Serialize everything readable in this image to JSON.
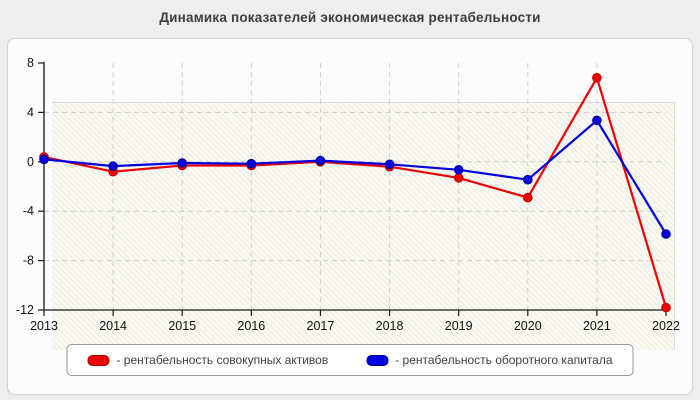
{
  "page": {
    "title": "Динамика показателей экономическая рентабельности"
  },
  "chart_data": {
    "type": "line",
    "title": "Динамика показателей экономическая рентабельности",
    "categories": [
      "2013",
      "2014",
      "2015",
      "2016",
      "2017",
      "2018",
      "2019",
      "2020",
      "2021",
      "2022"
    ],
    "series": [
      {
        "name": "рентабельность совокупных активов",
        "color": "#ee0000",
        "marker_edge": "#c00000",
        "values": [
          0.4,
          -0.8,
          -0.3,
          -0.3,
          0.0,
          -0.4,
          -1.3,
          -2.9,
          6.8,
          -11.8
        ]
      },
      {
        "name": "рентабельность оборотного капитала",
        "color": "#0000e0",
        "marker_edge": "#000090",
        "values": [
          0.2,
          -0.35,
          -0.1,
          -0.15,
          0.1,
          -0.2,
          -0.65,
          -1.45,
          3.35,
          -5.85
        ]
      }
    ],
    "xlabel": "",
    "ylabel": "",
    "ylim": [
      -12,
      8
    ],
    "yticks": [
      8,
      4,
      0,
      -4,
      -8,
      -12
    ],
    "grid": true,
    "grid_style": "dashed",
    "legend_position": "bottom"
  },
  "legend": {
    "items": [
      {
        "label": "- рентабельность совокупных активов",
        "color": "#ee0000",
        "edge": "#b00000"
      },
      {
        "label": "- рентабельность оборотного капитала",
        "color": "#0000e0",
        "edge": "#000090"
      }
    ]
  }
}
